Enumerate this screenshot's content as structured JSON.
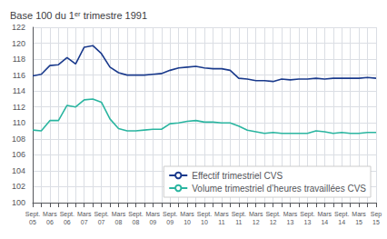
{
  "chart_data": {
    "type": "line",
    "title": "Base 100 du 1ᵉʳ trimestre 1991",
    "categories": [
      "Sept.\n05",
      null,
      "Mars\n06",
      null,
      "Sept.\n06",
      null,
      "Mars\n07",
      null,
      "Sept.\n07",
      null,
      "Mars\n08",
      null,
      "Sept.\n08",
      null,
      "Mars\n09",
      null,
      "Sept.\n09",
      null,
      "Mars\n10",
      null,
      "Sept.\n10",
      null,
      "Mars\n11",
      null,
      "Sept.\n11",
      null,
      "Mars\n12",
      null,
      "Sept.\n12",
      null,
      "Mars\n13",
      null,
      "Sept.\n13",
      null,
      "Mars\n14",
      null,
      "Sept.\n14",
      null,
      "Mars\n15",
      null,
      "Sep\n15"
    ],
    "series": [
      {
        "name": "Effectif trimestriel CVS",
        "color": "#1a3a8c",
        "values": [
          115.9,
          116.1,
          117.2,
          117.3,
          118.2,
          117.4,
          119.5,
          119.7,
          118.7,
          117.0,
          116.3,
          116.0,
          116.0,
          116.0,
          116.1,
          116.2,
          116.6,
          116.9,
          117.0,
          117.1,
          116.9,
          116.8,
          116.8,
          116.6,
          115.6,
          115.5,
          115.3,
          115.3,
          115.2,
          115.5,
          115.4,
          115.5,
          115.5,
          115.6,
          115.5,
          115.6,
          115.6,
          115.6,
          115.6,
          115.7,
          115.6
        ]
      },
      {
        "name": "Volume trimestriel d’heures travaillées CVS",
        "color": "#2ab5a0",
        "values": [
          109.1,
          109.0,
          110.3,
          110.3,
          112.2,
          112.0,
          112.9,
          113.0,
          112.6,
          110.5,
          109.3,
          109.0,
          109.0,
          109.1,
          109.2,
          109.2,
          109.9,
          110.0,
          110.2,
          110.3,
          110.1,
          110.1,
          110.0,
          110.0,
          109.6,
          109.1,
          108.9,
          108.7,
          108.8,
          108.7,
          108.7,
          108.7,
          108.7,
          109.0,
          108.9,
          108.7,
          108.8,
          108.7,
          108.7,
          108.8,
          108.8
        ]
      }
    ],
    "ylim": [
      100,
      122
    ],
    "yticks": [
      100,
      102,
      104,
      106,
      108,
      110,
      112,
      114,
      116,
      118,
      120,
      122
    ],
    "grid": true,
    "legend": "lower right"
  }
}
